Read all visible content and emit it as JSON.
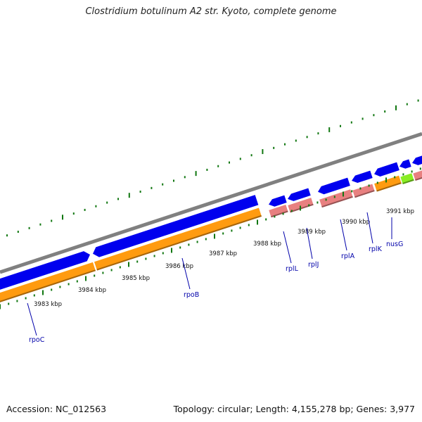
{
  "title": "Clostridium botulinum A2 str. Kyoto, complete genome",
  "footer": {
    "accession": "Accession: NC_012563",
    "topology": "Topology: circular; Length: 4,155,278 bp; Genes: 3,977"
  },
  "colors": {
    "backbone": "#808080",
    "cds": "#0000ee",
    "orf_orange": "#ff9b10",
    "orf_pink": "#e88080",
    "orf_green": "#88ee22",
    "tick": "#117711",
    "label": "#0000aa"
  },
  "ticks": [
    {
      "label": "3983 kbp"
    },
    {
      "label": "3984 kbp"
    },
    {
      "label": "3985 kbp"
    },
    {
      "label": "3986 kbp"
    },
    {
      "label": "3987 kbp"
    },
    {
      "label": "3988 kbp"
    },
    {
      "label": "3989 kbp"
    },
    {
      "label": "3990 kbp"
    },
    {
      "label": "3991 kbp"
    }
  ],
  "genes": [
    {
      "name": "rpoC"
    },
    {
      "name": "rpoB"
    },
    {
      "name": "rplL"
    },
    {
      "name": "rplJ"
    },
    {
      "name": "rplA"
    },
    {
      "name": "rplK"
    },
    {
      "name": "nusG"
    }
  ]
}
